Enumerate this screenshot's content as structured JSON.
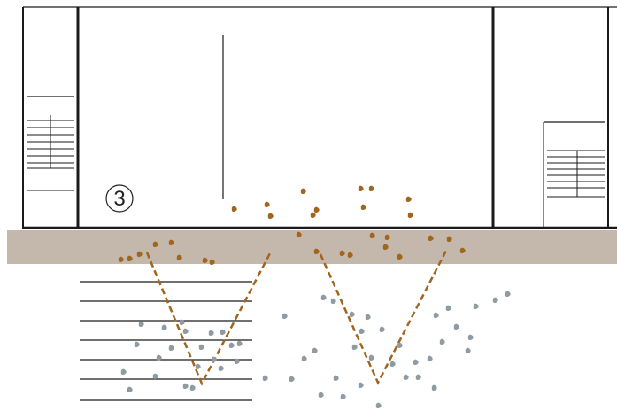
{
  "figure": {
    "step_number": "3",
    "colors": {
      "outline": "#1a1a1a",
      "ground_band": "#c4b8ac",
      "brown_particles": "#a0661e",
      "grey_particles": "#8f9ba3",
      "flow_lines": "#a0661e"
    },
    "icons": [
      "building-left",
      "building-center",
      "building-right",
      "stair-detail",
      "v-shaped-flow-line"
    ]
  }
}
